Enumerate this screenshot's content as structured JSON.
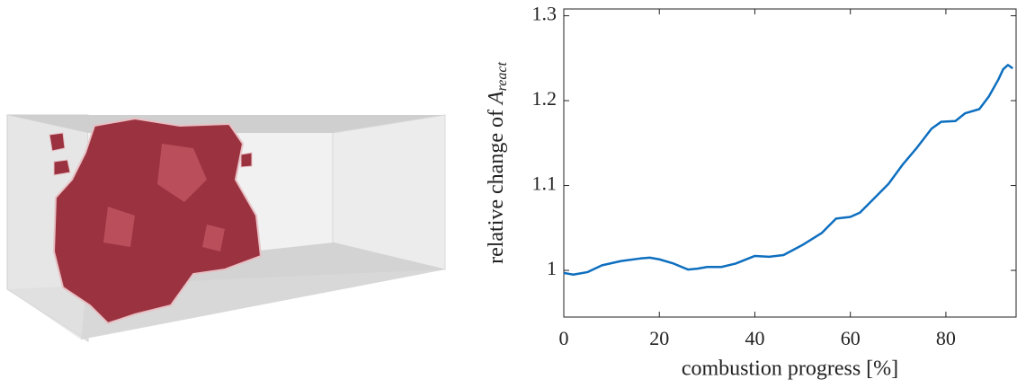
{
  "chart_data": {
    "type": "line",
    "xlabel": "combustion progress [%]",
    "ylabel": {
      "text": "relative change of ",
      "symbol": "A",
      "subscript": "react"
    },
    "x": [
      0,
      2,
      5,
      8,
      12,
      16,
      18,
      20,
      23,
      26,
      28,
      30,
      33,
      36,
      40,
      43,
      46,
      50,
      54,
      57,
      60,
      62,
      65,
      68,
      71,
      74,
      77,
      79,
      82,
      84,
      87,
      89,
      91,
      92,
      93,
      94
    ],
    "series": [
      {
        "name": "relative change",
        "color": "#0e6fbf",
        "values": [
          0.997,
          0.995,
          0.998,
          1.006,
          1.011,
          1.014,
          1.015,
          1.013,
          1.008,
          1.001,
          1.002,
          1.004,
          1.004,
          1.008,
          1.017,
          1.016,
          1.018,
          1.03,
          1.044,
          1.061,
          1.063,
          1.068,
          1.085,
          1.102,
          1.125,
          1.145,
          1.167,
          1.175,
          1.176,
          1.185,
          1.19,
          1.205,
          1.225,
          1.237,
          1.242,
          1.238
        ]
      }
    ],
    "xlim": [
      0,
      94.7
    ],
    "xticks": [
      0,
      20,
      40,
      60,
      80
    ],
    "ylim": [
      0.945,
      1.308
    ],
    "yticks": [
      1,
      1.1,
      1.2,
      1.3
    ]
  }
}
